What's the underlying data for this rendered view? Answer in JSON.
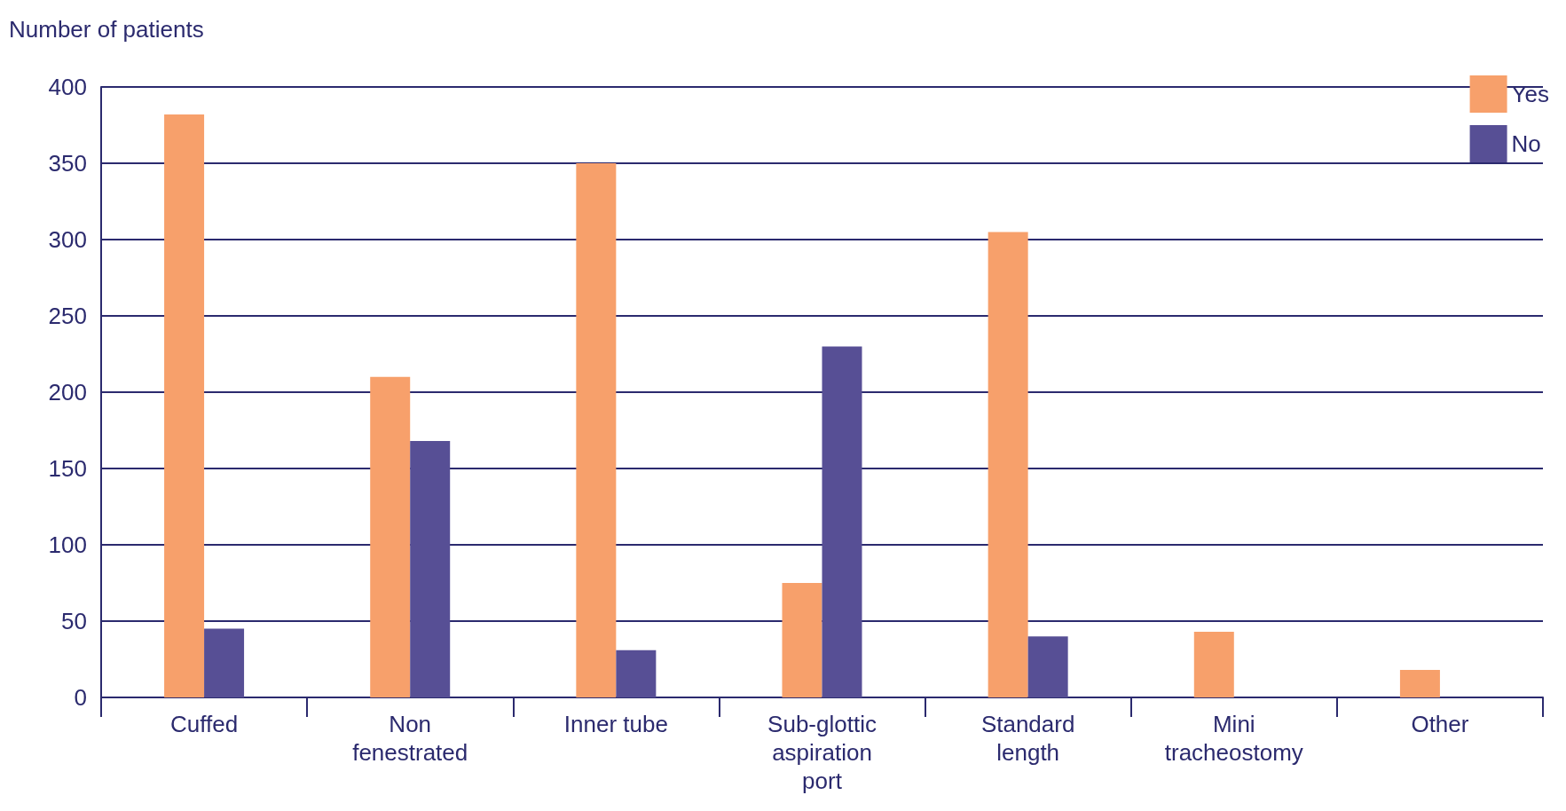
{
  "chart_data": {
    "type": "bar",
    "ylabel": "Number of patients",
    "categories": [
      "Cuffed",
      "Non\nfenestrated",
      "Inner tube",
      "Sub-glottic\naspiration\nport",
      "Standard\nlength",
      "Mini\ntracheostomy",
      "Other"
    ],
    "series": [
      {
        "name": "Yes",
        "color": "#f7a06b",
        "values": [
          382,
          210,
          350,
          75,
          305,
          43,
          18
        ]
      },
      {
        "name": "No",
        "color": "#574f95",
        "values": [
          45,
          168,
          31,
          230,
          40,
          null,
          null
        ]
      }
    ],
    "ylim": [
      0,
      400
    ],
    "yticks": [
      0,
      50,
      100,
      150,
      200,
      250,
      300,
      350,
      400
    ],
    "grid": "y",
    "legend": "top right"
  }
}
